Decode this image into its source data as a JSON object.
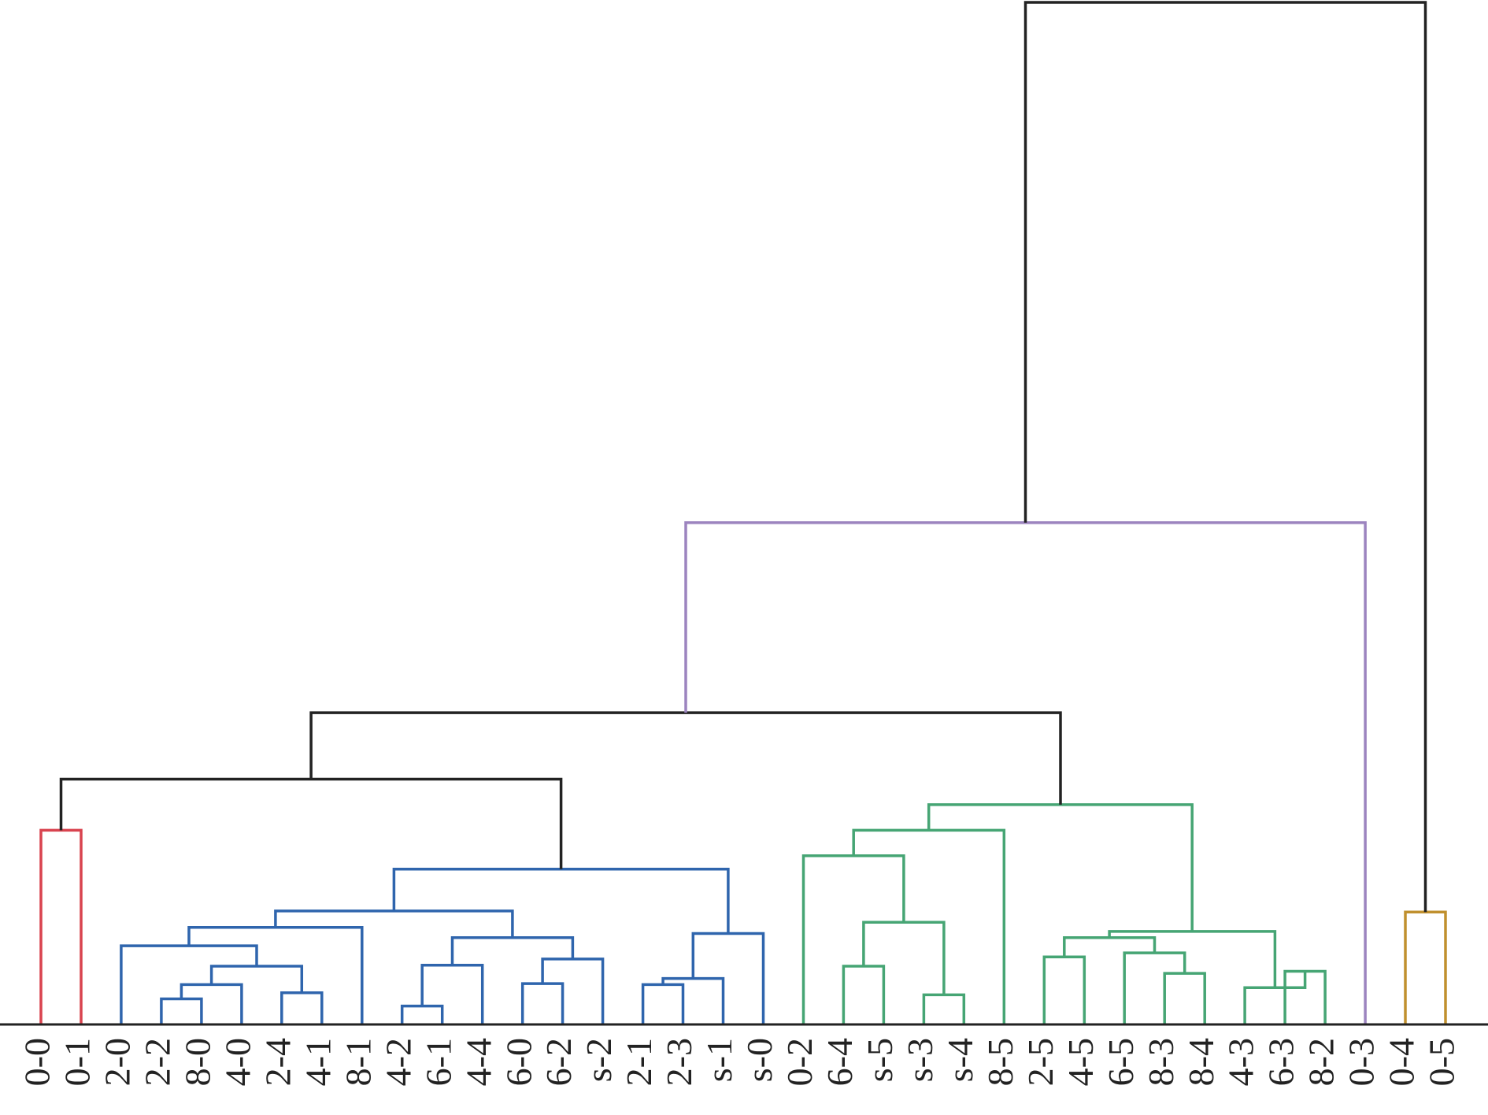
{
  "chart_data": {
    "type": "dendrogram",
    "title": "",
    "xlabel": "",
    "ylabel": "",
    "orientation": "top",
    "axis": {
      "baseline": true,
      "ticks_shown": false,
      "grid": false
    },
    "colors": {
      "above_threshold": "#222222",
      "red": "#d9434f",
      "blue": "#2f65ad",
      "green": "#46a574",
      "purple": "#9c84bf",
      "gold": "#c0902e"
    },
    "leaves": [
      "0-0",
      "0-1",
      "2-0",
      "2-2",
      "8-0",
      "4-0",
      "2-4",
      "4-1",
      "8-1",
      "4-2",
      "6-1",
      "4-4",
      "6-0",
      "6-2",
      "s-2",
      "2-1",
      "2-3",
      "s-1",
      "s-0",
      "0-2",
      "6-4",
      "s-5",
      "s-3",
      "s-4",
      "8-5",
      "2-5",
      "4-5",
      "6-5",
      "8-3",
      "8-4",
      "4-3",
      "6-3",
      "8-2",
      "0-3",
      "0-4",
      "0-5"
    ],
    "merges": [
      {
        "left": "L:0-0",
        "right": "L:0-1",
        "height": 0.19,
        "color": "red"
      },
      {
        "left": "L:2-2",
        "right": "L:8-0",
        "height": 0.025,
        "color": "blue"
      },
      {
        "left": "M:1",
        "right": "L:4-0",
        "height": 0.039,
        "color": "blue"
      },
      {
        "left": "L:2-4",
        "right": "L:4-1",
        "height": 0.031,
        "color": "blue"
      },
      {
        "left": "M:2",
        "right": "M:3",
        "height": 0.057,
        "color": "blue"
      },
      {
        "left": "L:2-0",
        "right": "M:4",
        "height": 0.077,
        "color": "blue"
      },
      {
        "left": "M:5",
        "right": "L:8-1",
        "height": 0.095,
        "color": "blue"
      },
      {
        "left": "L:4-2",
        "right": "L:6-1",
        "height": 0.018,
        "color": "blue"
      },
      {
        "left": "M:7",
        "right": "L:4-4",
        "height": 0.058,
        "color": "blue"
      },
      {
        "left": "L:6-0",
        "right": "L:6-2",
        "height": 0.04,
        "color": "blue"
      },
      {
        "left": "M:9",
        "right": "L:s-2",
        "height": 0.064,
        "color": "blue"
      },
      {
        "left": "M:8",
        "right": "M:10",
        "height": 0.085,
        "color": "blue"
      },
      {
        "left": "M:6",
        "right": "M:11",
        "height": 0.111,
        "color": "blue"
      },
      {
        "left": "L:2-1",
        "right": "L:2-3",
        "height": 0.039,
        "color": "blue"
      },
      {
        "left": "M:13",
        "right": "L:s-1",
        "height": 0.045,
        "color": "blue"
      },
      {
        "left": "M:14",
        "right": "L:s-0",
        "height": 0.089,
        "color": "blue"
      },
      {
        "left": "M:12",
        "right": "M:15",
        "height": 0.152,
        "color": "blue"
      },
      {
        "left": "M:0",
        "right": "M:16",
        "height": 0.24,
        "color": "above"
      },
      {
        "left": "L:6-4",
        "right": "L:s-5",
        "height": 0.057,
        "color": "green"
      },
      {
        "left": "L:s-3",
        "right": "L:s-4",
        "height": 0.029,
        "color": "green"
      },
      {
        "left": "M:18",
        "right": "M:19",
        "height": 0.1,
        "color": "green"
      },
      {
        "left": "L:0-2",
        "right": "M:20",
        "height": 0.165,
        "color": "green"
      },
      {
        "left": "M:21",
        "right": "L:8-5",
        "height": 0.19,
        "color": "green"
      },
      {
        "left": "L:2-5",
        "right": "L:4-5",
        "height": 0.066,
        "color": "green"
      },
      {
        "left": "L:8-3",
        "right": "L:8-4",
        "height": 0.05,
        "color": "green"
      },
      {
        "left": "L:6-5",
        "right": "M:24",
        "height": 0.07,
        "color": "green"
      },
      {
        "left": "M:23",
        "right": "M:25",
        "height": 0.085,
        "color": "green"
      },
      {
        "left": "L:6-3",
        "right": "L:8-2",
        "height": 0.052,
        "color": "green"
      },
      {
        "left": "L:4-3",
        "right": "M:27",
        "height": 0.036,
        "color": "green"
      },
      {
        "left": "M:26",
        "right": "M:28",
        "height": 0.091,
        "color": "green"
      },
      {
        "left": "M:22",
        "right": "M:29",
        "height": 0.215,
        "color": "green"
      },
      {
        "left": "M:17",
        "right": "M:30",
        "height": 0.305,
        "color": "above"
      },
      {
        "left": "M:31",
        "right": "L:0-3",
        "height": 0.491,
        "color": "purple"
      },
      {
        "left": "L:0-4",
        "right": "L:0-5",
        "height": 0.11,
        "color": "gold"
      },
      {
        "left": "M:32",
        "right": "M:33",
        "height": 1.0,
        "color": "above"
      }
    ]
  }
}
